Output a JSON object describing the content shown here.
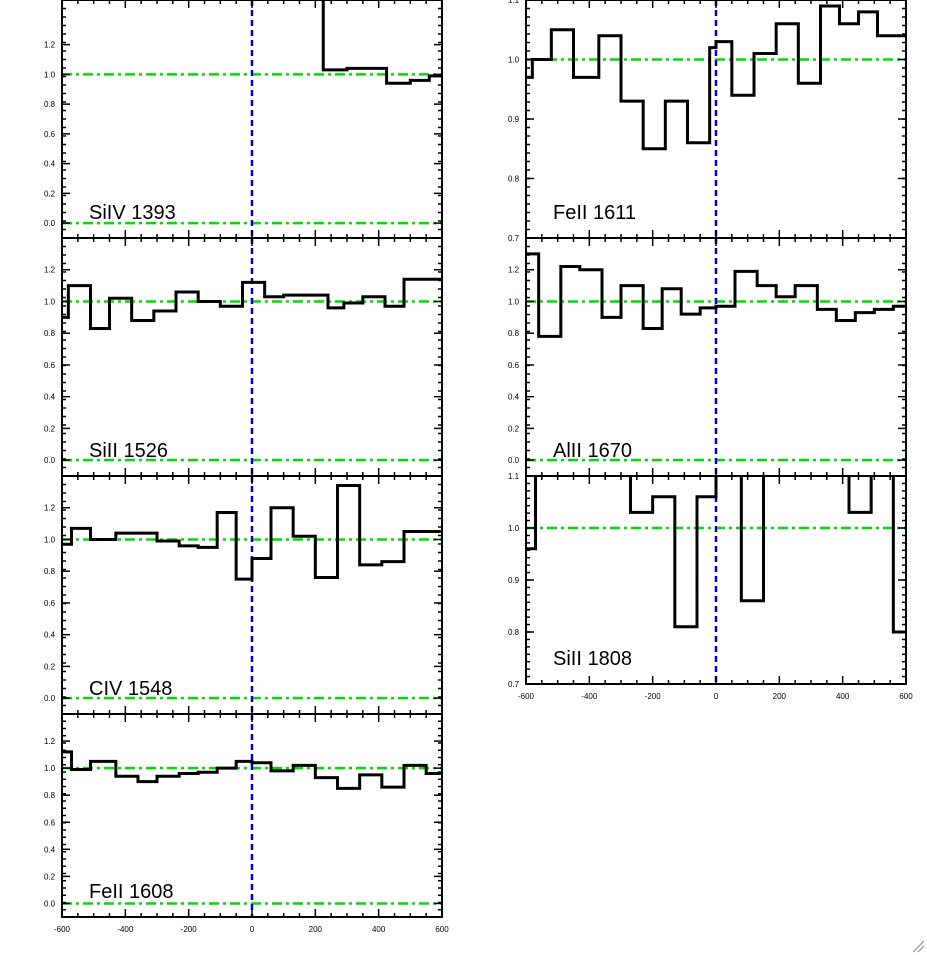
{
  "chart_data": [
    {
      "type": "line",
      "label": "SiIV 1393",
      "ylim": [
        -0.1,
        1.5
      ],
      "xlim": [
        -600,
        600
      ],
      "yticks": [
        "0.0",
        "0.2",
        "0.4",
        "0.6",
        "0.8",
        "1.0",
        "1.2"
      ],
      "xticks": [],
      "reference_lines": {
        "y": [
          0.0,
          1.0
        ],
        "x": [
          0
        ]
      },
      "x": [
        -600,
        -550,
        -500,
        -450,
        -400,
        -350,
        -300,
        -250,
        -200,
        -150,
        -100,
        -50,
        0,
        50,
        100,
        150,
        200,
        225,
        300,
        350,
        425,
        500,
        560,
        600
      ],
      "y": [
        1.6,
        1.6,
        1.6,
        1.6,
        1.6,
        1.6,
        1.6,
        1.6,
        1.6,
        1.6,
        1.6,
        1.6,
        1.6,
        1.6,
        1.6,
        1.6,
        1.6,
        1.03,
        1.04,
        1.04,
        0.94,
        0.96,
        0.99,
        0.99
      ]
    },
    {
      "type": "line",
      "label": "SiII 1526",
      "ylim": [
        -0.1,
        1.4
      ],
      "xlim": [
        -600,
        600
      ],
      "yticks": [
        "0.0",
        "0.2",
        "0.4",
        "0.6",
        "0.8",
        "1.0",
        "1.2"
      ],
      "xticks": [],
      "reference_lines": {
        "y": [
          0.0,
          1.0
        ],
        "x": [
          0
        ]
      },
      "x": [
        -600,
        -580,
        -510,
        -450,
        -380,
        -310,
        -240,
        -170,
        -100,
        -30,
        40,
        100,
        170,
        240,
        290,
        350,
        420,
        480,
        560,
        600
      ],
      "y": [
        0.9,
        1.1,
        0.83,
        1.02,
        0.88,
        0.94,
        1.06,
        1.0,
        0.97,
        1.12,
        1.03,
        1.04,
        1.04,
        0.96,
        0.99,
        1.03,
        0.97,
        1.14,
        1.14,
        1.14
      ]
    },
    {
      "type": "line",
      "label": "CIV 1548",
      "ylim": [
        -0.1,
        1.4
      ],
      "xlim": [
        -600,
        600
      ],
      "yticks": [
        "0.0",
        "0.2",
        "0.4",
        "0.6",
        "0.8",
        "1.0",
        "1.2"
      ],
      "xticks": [],
      "reference_lines": {
        "y": [
          0.0,
          1.0
        ],
        "x": [
          0
        ]
      },
      "x": [
        -600,
        -570,
        -510,
        -430,
        -360,
        -300,
        -230,
        -170,
        -110,
        -50,
        0,
        60,
        130,
        200,
        270,
        340,
        410,
        480,
        550,
        600
      ],
      "y": [
        0.97,
        1.07,
        1.0,
        1.04,
        1.04,
        0.99,
        0.96,
        0.95,
        1.17,
        0.75,
        0.88,
        1.2,
        1.02,
        0.76,
        1.34,
        0.84,
        0.86,
        1.05,
        1.05,
        1.05
      ]
    },
    {
      "type": "line",
      "label": "FeII 1608",
      "ylim": [
        -0.1,
        1.4
      ],
      "xlim": [
        -600,
        600
      ],
      "yticks": [
        "0.0",
        "0.2",
        "0.4",
        "0.6",
        "0.8",
        "1.0",
        "1.2"
      ],
      "xticks": [
        "-600",
        "-400",
        "-200",
        "0",
        "200",
        "400",
        "600"
      ],
      "reference_lines": {
        "y": [
          0.0,
          1.0
        ],
        "x": [
          0
        ]
      },
      "x": [
        -600,
        -570,
        -510,
        -430,
        -360,
        -300,
        -230,
        -170,
        -110,
        -50,
        0,
        60,
        130,
        200,
        270,
        340,
        410,
        480,
        550,
        600
      ],
      "y": [
        1.12,
        0.99,
        1.05,
        0.94,
        0.9,
        0.94,
        0.96,
        0.97,
        1.0,
        1.05,
        1.04,
        0.98,
        1.02,
        0.93,
        0.85,
        0.95,
        0.86,
        1.02,
        0.96,
        0.96
      ]
    },
    {
      "type": "line",
      "label": "FeII 1611",
      "ylim": [
        0.7,
        1.1
      ],
      "xlim": [
        -600,
        600
      ],
      "yticks": [
        "0.7",
        "0.8",
        "0.9",
        "1.0",
        "1.1"
      ],
      "xticks": [],
      "reference_lines": {
        "y": [
          1.0
        ],
        "x": [
          0
        ]
      },
      "x": [
        -600,
        -580,
        -520,
        -450,
        -370,
        -300,
        -230,
        -160,
        -90,
        -20,
        0,
        50,
        120,
        190,
        260,
        330,
        390,
        450,
        510,
        600
      ],
      "y": [
        0.97,
        1.0,
        1.05,
        0.97,
        1.04,
        0.93,
        0.85,
        0.93,
        0.86,
        1.02,
        1.03,
        0.94,
        1.01,
        1.06,
        0.96,
        1.09,
        1.06,
        1.08,
        1.04,
        1.04
      ]
    },
    {
      "type": "line",
      "label": "AlII 1670",
      "ylim": [
        -0.1,
        1.4
      ],
      "xlim": [
        -600,
        600
      ],
      "yticks": [
        "0.0",
        "0.2",
        "0.4",
        "0.6",
        "0.8",
        "1.0",
        "1.2"
      ],
      "xticks": [],
      "reference_lines": {
        "y": [
          0.0,
          1.0
        ],
        "x": [
          0
        ]
      },
      "x": [
        -600,
        -560,
        -490,
        -430,
        -360,
        -300,
        -230,
        -170,
        -110,
        -50,
        0,
        60,
        130,
        190,
        250,
        320,
        380,
        440,
        500,
        560,
        600
      ],
      "y": [
        1.3,
        0.78,
        1.22,
        1.2,
        0.9,
        1.1,
        0.83,
        1.08,
        0.92,
        0.96,
        0.97,
        1.19,
        1.1,
        1.03,
        1.1,
        0.95,
        0.88,
        0.93,
        0.95,
        0.97,
        0.97
      ]
    },
    {
      "type": "line",
      "label": "SiII 1808",
      "ylim": [
        0.7,
        1.1
      ],
      "xlim": [
        -600,
        600
      ],
      "yticks": [
        "0.7",
        "0.8",
        "0.9",
        "1.0",
        "1.1"
      ],
      "xticks": [
        "-600",
        "-400",
        "-200",
        "0",
        "200",
        "400",
        "600"
      ],
      "reference_lines": {
        "y": [
          1.0
        ],
        "x": [
          0
        ]
      },
      "x": [
        -600,
        -570,
        -540,
        -270,
        -200,
        -130,
        -60,
        0,
        80,
        150,
        420,
        490,
        560,
        600
      ],
      "y": [
        0.96,
        1.11,
        1.11,
        1.03,
        1.06,
        0.81,
        1.06,
        1.11,
        0.86,
        1.11,
        1.03,
        1.11,
        0.8,
        0.8
      ]
    }
  ],
  "colors": {
    "data": "#000000",
    "reference": "#00dd00",
    "zero_velocity": "#0000dd"
  },
  "icons": {
    "corner": "resize-grip-icon"
  }
}
